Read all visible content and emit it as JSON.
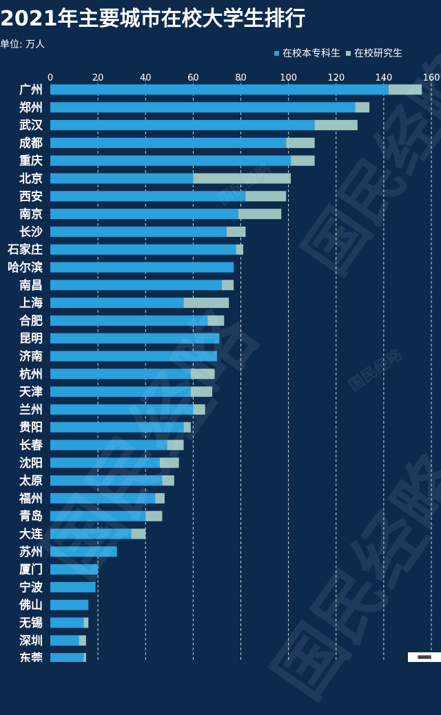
{
  "header": {
    "title": "2021年主要城市在校大学生排行",
    "unit": "单位: 万人"
  },
  "watermark_text": "国民经略",
  "colors": {
    "background": "#0d2a4d",
    "undergrad": "#2aa0dc",
    "postgrad": "#9cc3c0",
    "grid": "#ffffff",
    "text": "#ffffff"
  },
  "chart_data": {
    "type": "bar",
    "orientation": "horizontal",
    "stacked": true,
    "title": "2021年主要城市在校大学生排行",
    "unit": "单位: 万人",
    "xlim": [
      0,
      160
    ],
    "xticks": [
      0,
      20,
      40,
      60,
      80,
      100,
      120,
      140,
      160
    ],
    "grid": true,
    "legend_position": "top-right",
    "categories": [
      "广州",
      "郑州",
      "武汉",
      "成都",
      "重庆",
      "北京",
      "西安",
      "南京",
      "长沙",
      "石家庄",
      "哈尔滨",
      "南昌",
      "上海",
      "合肥",
      "昆明",
      "济南",
      "杭州",
      "天津",
      "兰州",
      "贵阳",
      "长春",
      "沈阳",
      "太原",
      "福州",
      "青岛",
      "大连",
      "苏州",
      "厦门",
      "宁波",
      "佛山",
      "无锡",
      "深圳",
      "东莞"
    ],
    "series": [
      {
        "name": "在校本专科生",
        "values": [
          142,
          128,
          111,
          99,
          101,
          60,
          82,
          79,
          74,
          78,
          77,
          72,
          56,
          66,
          71,
          70,
          59,
          59,
          60,
          56,
          49,
          46,
          47,
          44,
          40,
          34,
          28,
          20,
          19,
          16,
          14,
          12,
          14
        ]
      },
      {
        "name": "在校研究生",
        "values": [
          14,
          6,
          18,
          12,
          10,
          41,
          17,
          18,
          8,
          3,
          0,
          5,
          19,
          7,
          0,
          0,
          10,
          9,
          5,
          3,
          7,
          8,
          5,
          4,
          7,
          6,
          0,
          0,
          0,
          0,
          2,
          3,
          1
        ]
      }
    ]
  }
}
